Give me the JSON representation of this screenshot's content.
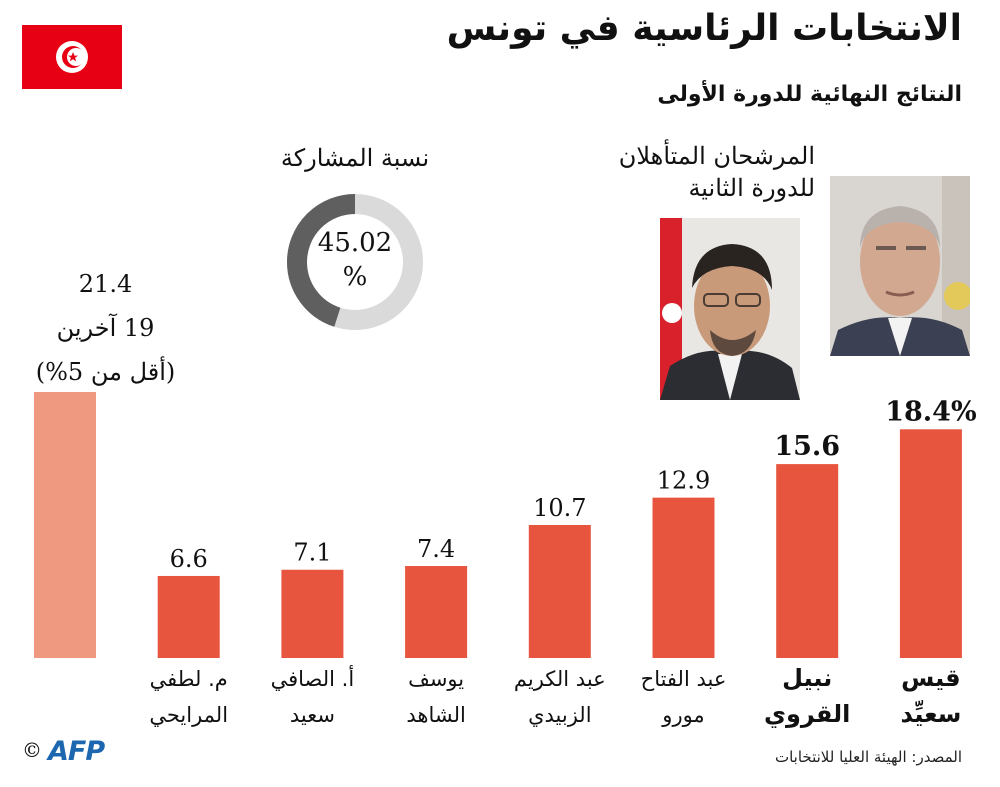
{
  "header": {
    "title": "الانتخابات الرئاسية في تونس",
    "subtitle": "النتائج النهائية للدورة الأولى"
  },
  "turnout": {
    "label": "نسبة المشاركة",
    "value_text": "45.02",
    "unit": "%",
    "fraction": 0.4502,
    "colors": {
      "filled": "#5f5f5f",
      "empty": "#dadada"
    }
  },
  "qualified": {
    "line1": "المرشحان المتأهلان",
    "line2": "للدورة الثانية"
  },
  "photos": [
    {
      "name": "نبيل القروي"
    },
    {
      "name": "قيس سعيّد"
    }
  ],
  "others_label": {
    "value": "21.4",
    "line1": "19 آخرين",
    "line2": "(أقل من 5%)"
  },
  "chart_data": {
    "type": "bar",
    "categories": [
      "19 آخرين (أقل من 5%)",
      "م. لطفي المرايحي",
      "أ. الصافي سعيد",
      "يوسف الشاهد",
      "عبد الكريم الزبيدي",
      "عبد الفتاح مورو",
      "نبيل القروي",
      "قيس سعيّد"
    ],
    "values": [
      21.4,
      6.6,
      7.1,
      7.4,
      10.7,
      12.9,
      15.6,
      18.4
    ],
    "value_labels": [
      "21.4",
      "6.6",
      "7.1",
      "7.4",
      "10.7",
      "12.9",
      "15.6",
      "18.4%"
    ],
    "name_line1": [
      "",
      "م.  لطفي",
      "أ. الصافي",
      "يوسف",
      "عبد الكريم",
      "عبد الفتاح",
      "نبيل",
      "قيس"
    ],
    "name_line2": [
      "",
      "المرايحي",
      "سعيد",
      "الشاهد",
      "الزبيدي",
      "مورو",
      "القروي",
      "سعيِّد"
    ],
    "bold": [
      false,
      false,
      false,
      false,
      false,
      false,
      true,
      true
    ],
    "colors": {
      "bar": "#e8553f",
      "others_bar": "#ef9a80"
    },
    "ylim": [
      0,
      21.4
    ]
  },
  "footer": {
    "source": "المصدر: الهيئة العليا للانتخابات",
    "agency": "AFP",
    "copyright": "©"
  }
}
